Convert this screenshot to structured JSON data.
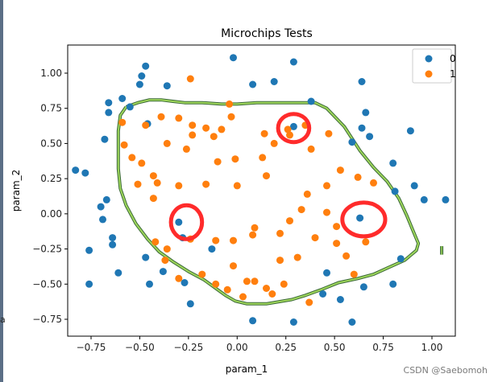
{
  "watermark": "CSDN @Saebomoh",
  "stray_mark": "a",
  "chart_data": {
    "type": "scatter",
    "title": "Microchips Tests",
    "xlabel": "param_1",
    "ylabel": "param_2",
    "xlim": [
      -0.87,
      1.12
    ],
    "ylim": [
      -0.87,
      1.2
    ],
    "x_ticks": [
      -0.75,
      -0.5,
      -0.25,
      0.0,
      0.25,
      0.5,
      0.75,
      1.0
    ],
    "x_tick_labels": [
      "−0.75",
      "−0.50",
      "−0.25",
      "0.00",
      "0.25",
      "0.50",
      "0.75",
      "1.00"
    ],
    "y_ticks": [
      1.0,
      0.75,
      0.5,
      0.25,
      0.0,
      -0.25,
      -0.5,
      -0.75
    ],
    "y_tick_labels": [
      "1.00",
      "0.75",
      "0.50",
      "0.25",
      "0.00",
      "−0.25",
      "−0.50",
      "−0.75"
    ],
    "legend_position": "top-right",
    "series": [
      {
        "name": "0",
        "color": "#1f77b4",
        "points": [
          [
            -0.47,
            1.05
          ],
          [
            -0.49,
            0.98
          ],
          [
            -0.5,
            0.92
          ],
          [
            -0.36,
            0.91
          ],
          [
            -0.59,
            0.82
          ],
          [
            -0.66,
            0.79
          ],
          [
            -0.55,
            0.76
          ],
          [
            -0.66,
            0.72
          ],
          [
            -0.46,
            0.64
          ],
          [
            -0.68,
            0.53
          ],
          [
            -0.83,
            0.31
          ],
          [
            -0.78,
            0.29
          ],
          [
            -0.67,
            0.1
          ],
          [
            -0.7,
            0.05
          ],
          [
            -0.69,
            -0.04
          ],
          [
            -0.64,
            -0.17
          ],
          [
            -0.76,
            -0.26
          ],
          [
            -0.64,
            -0.22
          ],
          [
            -0.47,
            -0.31
          ],
          [
            -0.45,
            -0.5
          ],
          [
            -0.61,
            -0.42
          ],
          [
            -0.76,
            -0.5
          ],
          [
            -0.38,
            -0.41
          ],
          [
            -0.27,
            -0.49
          ],
          [
            -0.24,
            -0.64
          ],
          [
            0.08,
            -0.76
          ],
          [
            -0.02,
            1.11
          ],
          [
            0.08,
            0.92
          ],
          [
            0.19,
            0.94
          ],
          [
            0.29,
            1.08
          ],
          [
            0.29,
            0.62
          ],
          [
            0.38,
            0.8
          ],
          [
            0.64,
            0.94
          ],
          [
            0.66,
            0.72
          ],
          [
            0.64,
            0.61
          ],
          [
            0.68,
            0.55
          ],
          [
            0.89,
            0.59
          ],
          [
            0.59,
            0.51
          ],
          [
            0.8,
            0.36
          ],
          [
            0.91,
            0.2
          ],
          [
            0.81,
            0.16
          ],
          [
            0.96,
            0.1
          ],
          [
            0.63,
            -0.03
          ],
          [
            1.07,
            0.1
          ],
          [
            0.46,
            -0.42
          ],
          [
            0.44,
            -0.57
          ],
          [
            0.53,
            -0.61
          ],
          [
            0.65,
            -0.52
          ],
          [
            0.8,
            -0.5
          ],
          [
            0.84,
            -0.32
          ],
          [
            -0.3,
            -0.06
          ],
          [
            0.59,
            -0.77
          ],
          [
            0.29,
            -0.77
          ],
          [
            -0.13,
            -0.25
          ],
          [
            -0.28,
            -0.17
          ]
        ]
      },
      {
        "name": "1",
        "color": "#ff7f0e",
        "points": [
          [
            -0.24,
            0.96
          ],
          [
            -0.59,
            0.65
          ],
          [
            -0.54,
            0.4
          ],
          [
            -0.47,
            0.63
          ],
          [
            -0.39,
            0.69
          ],
          [
            -0.3,
            0.68
          ],
          [
            -0.23,
            0.56
          ],
          [
            -0.23,
            0.63
          ],
          [
            -0.16,
            0.61
          ],
          [
            -0.12,
            0.55
          ],
          [
            -0.03,
            0.69
          ],
          [
            -0.08,
            0.6
          ],
          [
            -0.58,
            0.49
          ],
          [
            -0.49,
            0.36
          ],
          [
            -0.36,
            0.5
          ],
          [
            -0.26,
            0.46
          ],
          [
            -0.51,
            0.21
          ],
          [
            -0.41,
            0.22
          ],
          [
            -0.43,
            0.11
          ],
          [
            -0.3,
            0.2
          ],
          [
            -0.16,
            0.21
          ],
          [
            -0.1,
            0.37
          ],
          [
            0.0,
            0.2
          ],
          [
            -0.01,
            0.39
          ],
          [
            0.15,
            0.27
          ],
          [
            0.13,
            0.4
          ],
          [
            0.19,
            0.5
          ],
          [
            0.27,
            0.56
          ],
          [
            0.38,
            0.46
          ],
          [
            0.35,
            0.63
          ],
          [
            0.47,
            0.57
          ],
          [
            0.14,
            0.57
          ],
          [
            0.26,
            0.6
          ],
          [
            -0.04,
            0.78
          ],
          [
            -0.43,
            0.27
          ],
          [
            0.33,
            0.03
          ],
          [
            0.36,
            0.14
          ],
          [
            0.27,
            -0.05
          ],
          [
            0.22,
            -0.14
          ],
          [
            0.09,
            -0.1
          ],
          [
            0.46,
            0.2
          ],
          [
            0.53,
            0.31
          ],
          [
            0.62,
            0.26
          ],
          [
            0.7,
            0.22
          ],
          [
            0.51,
            -0.09
          ],
          [
            0.46,
            0.01
          ],
          [
            0.51,
            -0.21
          ],
          [
            0.66,
            -0.2
          ],
          [
            0.56,
            -0.3
          ],
          [
            -0.11,
            -0.19
          ],
          [
            -0.02,
            -0.19
          ],
          [
            0.08,
            -0.15
          ],
          [
            0.22,
            -0.33
          ],
          [
            0.31,
            -0.31
          ],
          [
            0.4,
            -0.17
          ],
          [
            -0.02,
            -0.37
          ],
          [
            0.15,
            -0.53
          ],
          [
            0.24,
            -0.5
          ],
          [
            -0.36,
            -0.25
          ],
          [
            -0.24,
            -0.18
          ],
          [
            -0.3,
            -0.46
          ],
          [
            -0.18,
            -0.43
          ],
          [
            0.09,
            -0.48
          ],
          [
            0.37,
            -0.63
          ],
          [
            0.6,
            -0.43
          ],
          [
            -0.11,
            -0.5
          ],
          [
            -0.05,
            -0.54
          ],
          [
            0.03,
            -0.59
          ],
          [
            0.18,
            -0.57
          ],
          [
            0.05,
            -0.48
          ],
          [
            -0.37,
            -0.33
          ],
          [
            -0.42,
            -0.2
          ]
        ]
      }
    ],
    "decision_boundary": {
      "name": "decision-boundary",
      "color": "#3d6b3a",
      "highlight_color": "#9ed65a",
      "points": [
        [
          -0.57,
          0.76
        ],
        [
          -0.51,
          0.79
        ],
        [
          -0.45,
          0.81
        ],
        [
          -0.39,
          0.81
        ],
        [
          -0.33,
          0.8
        ],
        [
          -0.27,
          0.79
        ],
        [
          -0.18,
          0.79
        ],
        [
          -0.08,
          0.78
        ],
        [
          0.0,
          0.78
        ],
        [
          0.1,
          0.79
        ],
        [
          0.22,
          0.79
        ],
        [
          0.33,
          0.79
        ],
        [
          0.4,
          0.79
        ],
        [
          0.46,
          0.75
        ],
        [
          0.55,
          0.62
        ],
        [
          0.63,
          0.45
        ],
        [
          0.7,
          0.33
        ],
        [
          0.77,
          0.23
        ],
        [
          0.83,
          0.11
        ],
        [
          0.87,
          -0.01
        ],
        [
          0.9,
          -0.11
        ],
        [
          0.93,
          -0.21
        ],
        [
          0.92,
          -0.26
        ],
        [
          0.86,
          -0.33
        ],
        [
          0.78,
          -0.38
        ],
        [
          0.7,
          -0.43
        ],
        [
          0.62,
          -0.46
        ],
        [
          0.52,
          -0.49
        ],
        [
          0.43,
          -0.54
        ],
        [
          0.35,
          -0.58
        ],
        [
          0.28,
          -0.61
        ],
        [
          0.15,
          -0.64
        ],
        [
          0.05,
          -0.64
        ],
        [
          -0.01,
          -0.62
        ],
        [
          -0.06,
          -0.58
        ],
        [
          -0.11,
          -0.53
        ],
        [
          -0.17,
          -0.47
        ],
        [
          -0.25,
          -0.41
        ],
        [
          -0.33,
          -0.34
        ],
        [
          -0.4,
          -0.27
        ],
        [
          -0.46,
          -0.18
        ],
        [
          -0.52,
          -0.07
        ],
        [
          -0.57,
          0.06
        ],
        [
          -0.6,
          0.18
        ],
        [
          -0.61,
          0.32
        ],
        [
          -0.61,
          0.45
        ],
        [
          -0.61,
          0.59
        ],
        [
          -0.6,
          0.7
        ],
        [
          -0.57,
          0.76
        ]
      ],
      "tail": [
        [
          1.05,
          -0.23
        ],
        [
          1.05,
          -0.29
        ]
      ]
    },
    "annotations": [
      {
        "name": "red-circle-upper",
        "cx": 0.29,
        "cy": 0.61,
        "rx": 0.08,
        "ry": 0.1,
        "color": "#ff2b2b"
      },
      {
        "name": "red-circle-left",
        "cx": -0.26,
        "cy": -0.06,
        "rx": 0.08,
        "ry": 0.12,
        "color": "#ff2b2b"
      },
      {
        "name": "red-circle-right",
        "cx": 0.65,
        "cy": -0.04,
        "rx": 0.11,
        "ry": 0.12,
        "color": "#ff2b2b"
      }
    ]
  }
}
